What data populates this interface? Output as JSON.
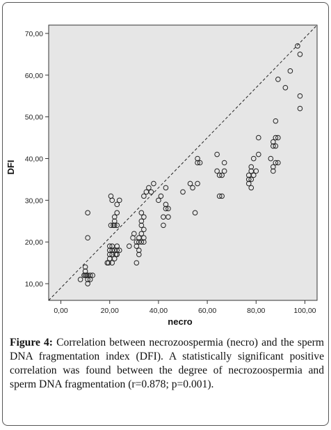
{
  "figure": {
    "label": "Figure 4:",
    "caption": "Correlation between necrozoospermia (necro) and the sperm DNA fragmentation index (DFI). A statistically significant positive correlation was found between the degree of necrozoospermia and sperm DNA fragmentation (r=0.878; p=0.001)."
  },
  "chart_data": {
    "type": "scatter",
    "xlabel": "necro",
    "ylabel": "DFI",
    "xlim": [
      -5,
      105
    ],
    "ylim": [
      6,
      72
    ],
    "x_ticks": [
      "0,00",
      "20,00",
      "40,00",
      "60,00",
      "80,00",
      "100,00"
    ],
    "x_tick_values": [
      0,
      20,
      40,
      60,
      80,
      100
    ],
    "y_ticks": [
      "10,00",
      "20,00",
      "30,00",
      "40,00",
      "50,00",
      "60,00",
      "70,00"
    ],
    "y_tick_values": [
      10,
      20,
      30,
      40,
      50,
      60,
      70
    ],
    "grid": false,
    "reference_line": {
      "from": [
        -5,
        6
      ],
      "to": [
        105,
        72
      ],
      "style": "dashed",
      "color": "#222222"
    },
    "plot_background": "#e6e6e6",
    "marker_color": "#222222",
    "points": [
      [
        8,
        11
      ],
      [
        9.5,
        12
      ],
      [
        10,
        12
      ],
      [
        10,
        13
      ],
      [
        10,
        14
      ],
      [
        10.5,
        12
      ],
      [
        11,
        12
      ],
      [
        11,
        11
      ],
      [
        11,
        10
      ],
      [
        12,
        11
      ],
      [
        12,
        12
      ],
      [
        13,
        12
      ],
      [
        11,
        21
      ],
      [
        11,
        27
      ],
      [
        19,
        15
      ],
      [
        19.5,
        15
      ],
      [
        20,
        18
      ],
      [
        20,
        19
      ],
      [
        20,
        16
      ],
      [
        20,
        17
      ],
      [
        20.5,
        24
      ],
      [
        20.5,
        31
      ],
      [
        21,
        30
      ],
      [
        21,
        15
      ],
      [
        21,
        17
      ],
      [
        21,
        18
      ],
      [
        21,
        19
      ],
      [
        21.5,
        24
      ],
      [
        22,
        16
      ],
      [
        22,
        18
      ],
      [
        22,
        24
      ],
      [
        22,
        25
      ],
      [
        22,
        26
      ],
      [
        22.5,
        17
      ],
      [
        23,
        29
      ],
      [
        23,
        24
      ],
      [
        23,
        19
      ],
      [
        23,
        18
      ],
      [
        23,
        17
      ],
      [
        23,
        27
      ],
      [
        24,
        18
      ],
      [
        24,
        30
      ],
      [
        28,
        19
      ],
      [
        29.5,
        21
      ],
      [
        30,
        22
      ],
      [
        31,
        20
      ],
      [
        31,
        19
      ],
      [
        31,
        15
      ],
      [
        32,
        17
      ],
      [
        32,
        21
      ],
      [
        32,
        20
      ],
      [
        32,
        18
      ],
      [
        33,
        25
      ],
      [
        33,
        24
      ],
      [
        33,
        22
      ],
      [
        33,
        20
      ],
      [
        33,
        27
      ],
      [
        34,
        26
      ],
      [
        34,
        21
      ],
      [
        34,
        20
      ],
      [
        34,
        23
      ],
      [
        34,
        31
      ],
      [
        35,
        32
      ],
      [
        36,
        33
      ],
      [
        37,
        32
      ],
      [
        38,
        34
      ],
      [
        40,
        30
      ],
      [
        41,
        31
      ],
      [
        42,
        26
      ],
      [
        42,
        24
      ],
      [
        43,
        33
      ],
      [
        43,
        28
      ],
      [
        43,
        29
      ],
      [
        44,
        26
      ],
      [
        44,
        28
      ],
      [
        50,
        32
      ],
      [
        53,
        34
      ],
      [
        54,
        33
      ],
      [
        55,
        27
      ],
      [
        56,
        34
      ],
      [
        56,
        40
      ],
      [
        56,
        39
      ],
      [
        57,
        39
      ],
      [
        64,
        41
      ],
      [
        64,
        37
      ],
      [
        65,
        36
      ],
      [
        65,
        31
      ],
      [
        66,
        31
      ],
      [
        66,
        36
      ],
      [
        67,
        37
      ],
      [
        67,
        39
      ],
      [
        77,
        34
      ],
      [
        77,
        35
      ],
      [
        77,
        36
      ],
      [
        78,
        33
      ],
      [
        78,
        38
      ],
      [
        78,
        37
      ],
      [
        78,
        35
      ],
      [
        79,
        36
      ],
      [
        79,
        40
      ],
      [
        80,
        37
      ],
      [
        81,
        45
      ],
      [
        81,
        41
      ],
      [
        86,
        40
      ],
      [
        87,
        38
      ],
      [
        87,
        37
      ],
      [
        87,
        43
      ],
      [
        87,
        44
      ],
      [
        88,
        39
      ],
      [
        88,
        43
      ],
      [
        88,
        49
      ],
      [
        88,
        45
      ],
      [
        89,
        39
      ],
      [
        89,
        45
      ],
      [
        89,
        59
      ],
      [
        92,
        57
      ],
      [
        94,
        61
      ],
      [
        97,
        67
      ],
      [
        98,
        65
      ],
      [
        98,
        55
      ],
      [
        98,
        52
      ]
    ]
  }
}
